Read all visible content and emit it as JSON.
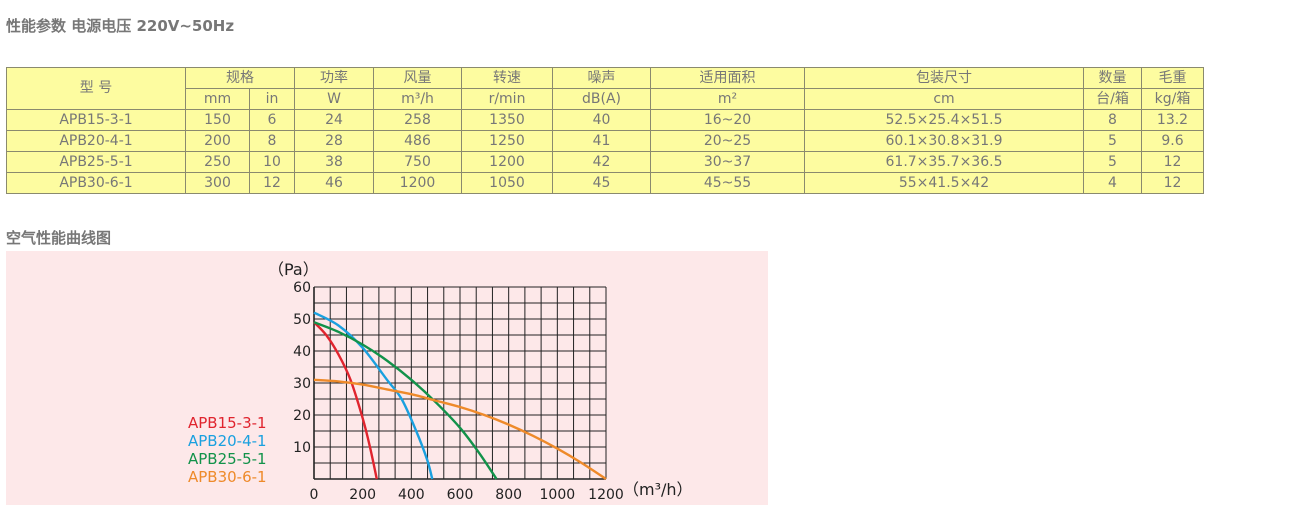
{
  "header": {
    "title": "性能参数 电源电压  220V~50Hz"
  },
  "table": {
    "head_top": [
      "型 号",
      "规格",
      "功率",
      "风量",
      "转速",
      "噪声",
      "适用面积",
      "包装尺寸",
      "数量",
      "毛重"
    ],
    "head_units": [
      "mm",
      "in",
      "W",
      "m³/h",
      "r/min",
      "dB(A)",
      "m²",
      "cm",
      "台/箱",
      "kg/箱"
    ],
    "rows": [
      [
        "APB15-3-1",
        "150",
        "6",
        "24",
        "258",
        "1350",
        "40",
        "16~20",
        "52.5×25.4×51.5",
        "8",
        "13.2"
      ],
      [
        "APB20-4-1",
        "200",
        "8",
        "28",
        "486",
        "1250",
        "41",
        "20~25",
        "60.1×30.8×31.9",
        "5",
        "9.6"
      ],
      [
        "APB25-5-1",
        "250",
        "10",
        "38",
        "750",
        "1200",
        "42",
        "30~37",
        "61.7×35.7×36.5",
        "5",
        "12"
      ],
      [
        "APB30-6-1",
        "300",
        "12",
        "46",
        "1200",
        "1050",
        "45",
        "45~55",
        "55×41.5×42",
        "4",
        "12"
      ]
    ]
  },
  "section2": {
    "title": "空气性能曲线图"
  },
  "chart_data": {
    "type": "line",
    "ylabel": "（Pa）",
    "xlabel": "（m³/h）",
    "xlim": [
      0,
      1200
    ],
    "ylim": [
      0,
      60
    ],
    "x_ticks": [
      0,
      200,
      400,
      600,
      800,
      1000,
      1200
    ],
    "y_ticks": [
      10,
      20,
      30,
      40,
      50,
      60
    ],
    "grid": true,
    "legend_position": "bottom-left",
    "series": [
      {
        "name": "APB15-3-1",
        "color": "#e0242e",
        "x": [
          0,
          50,
          100,
          150,
          200,
          230,
          258
        ],
        "y": [
          49,
          45,
          39,
          31,
          19,
          10,
          0
        ]
      },
      {
        "name": "APB20-4-1",
        "color": "#1aa0df",
        "x": [
          0,
          100,
          200,
          300,
          360,
          420,
          465,
          486
        ],
        "y": [
          52,
          48,
          41,
          31,
          25,
          15,
          6,
          0
        ]
      },
      {
        "name": "APB25-5-1",
        "color": "#12924a",
        "x": [
          0,
          100,
          200,
          300,
          400,
          500,
          600,
          680,
          750
        ],
        "y": [
          49,
          46,
          42,
          37,
          31,
          24,
          16,
          8,
          0
        ]
      },
      {
        "name": "APB30-6-1",
        "color": "#ee8a2a",
        "x": [
          0,
          100,
          200,
          300,
          400,
          500,
          600,
          700,
          800,
          900,
          1000,
          1100,
          1200
        ],
        "y": [
          31,
          30.5,
          29.5,
          28,
          26.5,
          24.5,
          22.5,
          20,
          17,
          13.5,
          9.5,
          5,
          0
        ]
      }
    ]
  }
}
